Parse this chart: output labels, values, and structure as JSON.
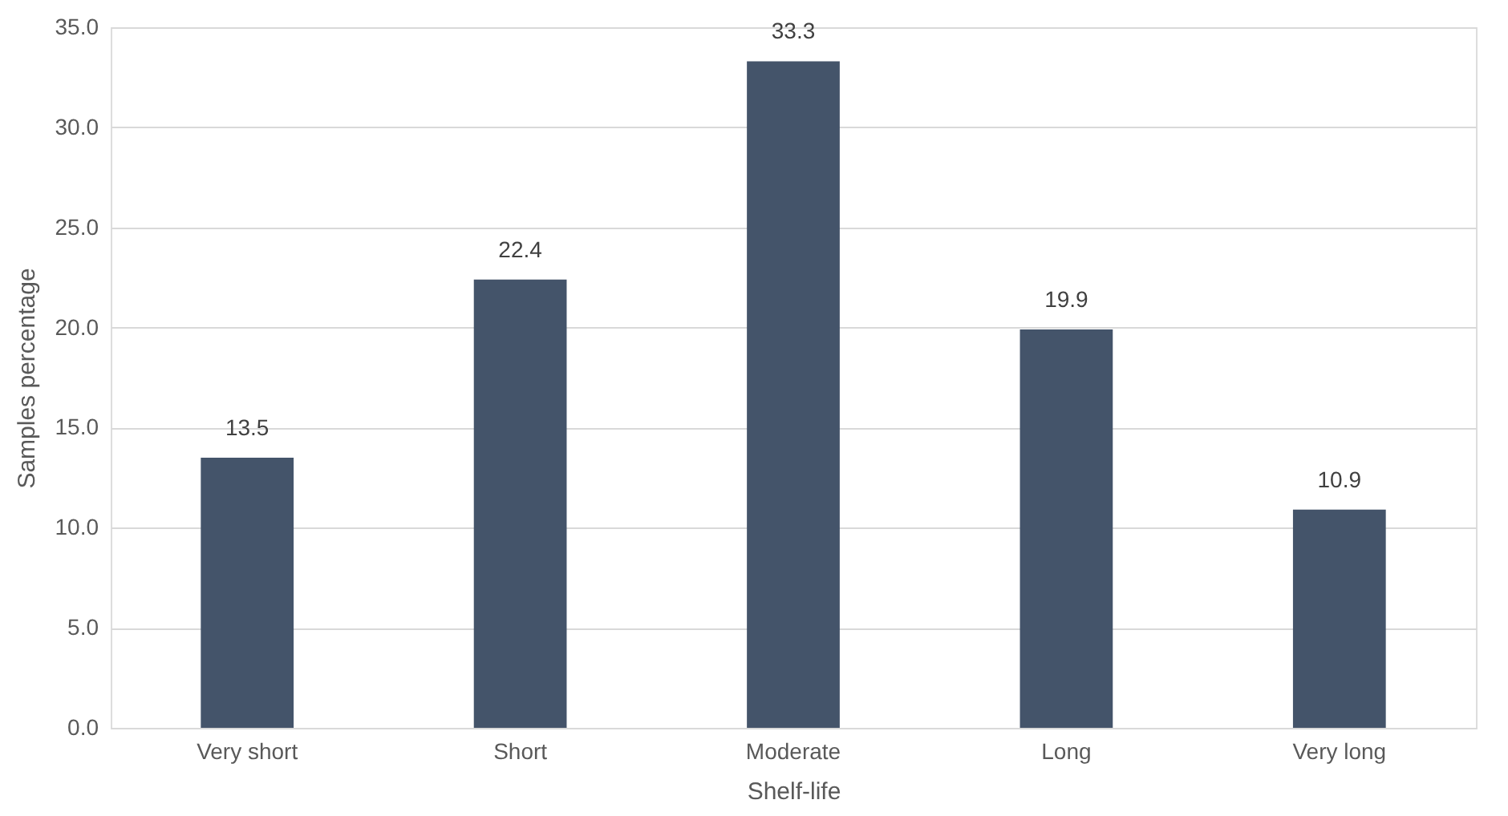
{
  "chart_data": {
    "type": "bar",
    "categories": [
      "Very short",
      "Short",
      "Moderate",
      "Long",
      "Very long"
    ],
    "values": [
      13.5,
      22.4,
      33.3,
      19.9,
      10.9
    ],
    "color": "#44546a",
    "xlabel": "Shelf-life",
    "ylabel": "Samples percentage",
    "ylim": [
      0,
      35
    ],
    "yticks": [
      {
        "value": 0,
        "label": "0.0"
      },
      {
        "value": 5,
        "label": "5.0"
      },
      {
        "value": 10,
        "label": "10.0"
      },
      {
        "value": 15,
        "label": "15.0"
      },
      {
        "value": 20,
        "label": "20.0"
      },
      {
        "value": 25,
        "label": "25.0"
      },
      {
        "value": 30,
        "label": "30.0"
      },
      {
        "value": 35,
        "label": "35.0"
      }
    ],
    "grid": "y",
    "data_labels": true
  }
}
